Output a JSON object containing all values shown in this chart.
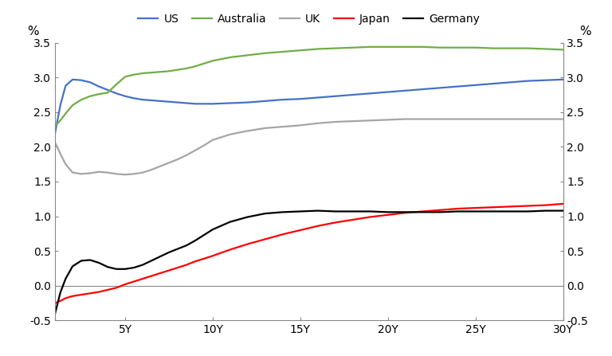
{
  "x_ticks": [
    1,
    5,
    10,
    15,
    20,
    25,
    30
  ],
  "x_tick_labels": [
    "",
    "5Y",
    "10Y",
    "15Y",
    "20Y",
    "25Y",
    "30Y"
  ],
  "ylim": [
    -0.5,
    3.5
  ],
  "yticks": [
    -0.5,
    0.0,
    0.5,
    1.0,
    1.5,
    2.0,
    2.5,
    3.0,
    3.5
  ],
  "ylabel_left": "%",
  "ylabel_right": "%",
  "background_color": "#ffffff",
  "series": {
    "US": {
      "color": "#4472C4",
      "x": [
        1,
        1.3,
        1.6,
        2.0,
        2.5,
        3.0,
        3.5,
        4.0,
        4.5,
        5.0,
        5.5,
        6.0,
        6.5,
        7.0,
        7.5,
        8.0,
        8.5,
        9.0,
        9.5,
        10,
        11,
        12,
        13,
        14,
        15,
        16,
        17,
        18,
        19,
        20,
        21,
        22,
        23,
        24,
        25,
        26,
        27,
        28,
        29,
        30
      ],
      "y": [
        2.2,
        2.6,
        2.88,
        2.97,
        2.96,
        2.93,
        2.87,
        2.82,
        2.77,
        2.73,
        2.7,
        2.68,
        2.67,
        2.66,
        2.65,
        2.64,
        2.63,
        2.62,
        2.62,
        2.62,
        2.63,
        2.64,
        2.66,
        2.68,
        2.69,
        2.71,
        2.73,
        2.75,
        2.77,
        2.79,
        2.81,
        2.83,
        2.85,
        2.87,
        2.89,
        2.91,
        2.93,
        2.95,
        2.96,
        2.97
      ]
    },
    "Australia": {
      "color": "#70AD47",
      "x": [
        1,
        1.3,
        1.6,
        2.0,
        2.5,
        3.0,
        3.5,
        4.0,
        4.5,
        5.0,
        5.5,
        6.0,
        6.5,
        7.0,
        7.5,
        8.0,
        8.5,
        9.0,
        9.5,
        10,
        11,
        12,
        13,
        14,
        15,
        16,
        17,
        18,
        19,
        20,
        21,
        22,
        23,
        24,
        25,
        26,
        27,
        28,
        29,
        30
      ],
      "y": [
        2.3,
        2.38,
        2.48,
        2.6,
        2.68,
        2.73,
        2.76,
        2.78,
        2.9,
        3.01,
        3.04,
        3.06,
        3.07,
        3.08,
        3.09,
        3.11,
        3.13,
        3.16,
        3.2,
        3.24,
        3.29,
        3.32,
        3.35,
        3.37,
        3.39,
        3.41,
        3.42,
        3.43,
        3.44,
        3.44,
        3.44,
        3.44,
        3.43,
        3.43,
        3.43,
        3.42,
        3.42,
        3.42,
        3.41,
        3.4
      ]
    },
    "UK": {
      "color": "#A5A5A5",
      "x": [
        1,
        1.3,
        1.6,
        2.0,
        2.5,
        3.0,
        3.5,
        4.0,
        4.5,
        5.0,
        5.5,
        6.0,
        6.5,
        7.0,
        7.5,
        8.0,
        8.5,
        9.0,
        9.5,
        10,
        11,
        12,
        13,
        14,
        15,
        16,
        17,
        18,
        19,
        20,
        21,
        22,
        23,
        24,
        25,
        26,
        27,
        28,
        29,
        30
      ],
      "y": [
        2.06,
        1.9,
        1.75,
        1.63,
        1.61,
        1.62,
        1.64,
        1.63,
        1.61,
        1.6,
        1.61,
        1.63,
        1.67,
        1.72,
        1.77,
        1.82,
        1.88,
        1.95,
        2.02,
        2.1,
        2.18,
        2.23,
        2.27,
        2.29,
        2.31,
        2.34,
        2.36,
        2.37,
        2.38,
        2.39,
        2.4,
        2.4,
        2.4,
        2.4,
        2.4,
        2.4,
        2.4,
        2.4,
        2.4,
        2.4
      ]
    },
    "Japan": {
      "color": "#FF0000",
      "x": [
        1,
        1.3,
        1.6,
        2.0,
        2.5,
        3.0,
        3.5,
        4.0,
        4.5,
        5.0,
        5.5,
        6.0,
        6.5,
        7.0,
        7.5,
        8.0,
        8.5,
        9.0,
        9.5,
        10,
        11,
        12,
        13,
        14,
        15,
        16,
        17,
        18,
        19,
        20,
        21,
        22,
        23,
        24,
        25,
        26,
        27,
        28,
        29,
        30
      ],
      "y": [
        -0.25,
        -0.22,
        -0.18,
        -0.15,
        -0.13,
        -0.11,
        -0.09,
        -0.06,
        -0.03,
        0.02,
        0.06,
        0.1,
        0.14,
        0.18,
        0.22,
        0.26,
        0.3,
        0.35,
        0.39,
        0.43,
        0.52,
        0.6,
        0.67,
        0.74,
        0.8,
        0.86,
        0.91,
        0.95,
        0.99,
        1.02,
        1.05,
        1.07,
        1.09,
        1.11,
        1.12,
        1.13,
        1.14,
        1.15,
        1.16,
        1.18
      ]
    },
    "Germany": {
      "color": "#000000",
      "x": [
        1,
        1.3,
        1.6,
        2.0,
        2.5,
        3.0,
        3.5,
        4.0,
        4.5,
        5.0,
        5.5,
        6.0,
        6.5,
        7.0,
        7.5,
        8.0,
        8.5,
        9.0,
        9.5,
        10,
        11,
        12,
        13,
        14,
        15,
        16,
        17,
        18,
        19,
        20,
        21,
        22,
        23,
        24,
        25,
        26,
        27,
        28,
        29,
        30
      ],
      "y": [
        -0.4,
        -0.1,
        0.1,
        0.28,
        0.36,
        0.37,
        0.33,
        0.27,
        0.24,
        0.24,
        0.26,
        0.3,
        0.36,
        0.42,
        0.48,
        0.53,
        0.58,
        0.65,
        0.73,
        0.81,
        0.92,
        0.99,
        1.04,
        1.06,
        1.07,
        1.08,
        1.07,
        1.07,
        1.07,
        1.06,
        1.06,
        1.06,
        1.06,
        1.07,
        1.07,
        1.07,
        1.07,
        1.07,
        1.08,
        1.08
      ]
    }
  },
  "legend_order": [
    "US",
    "Australia",
    "UK",
    "Japan",
    "Germany"
  ],
  "line_width": 1.6
}
